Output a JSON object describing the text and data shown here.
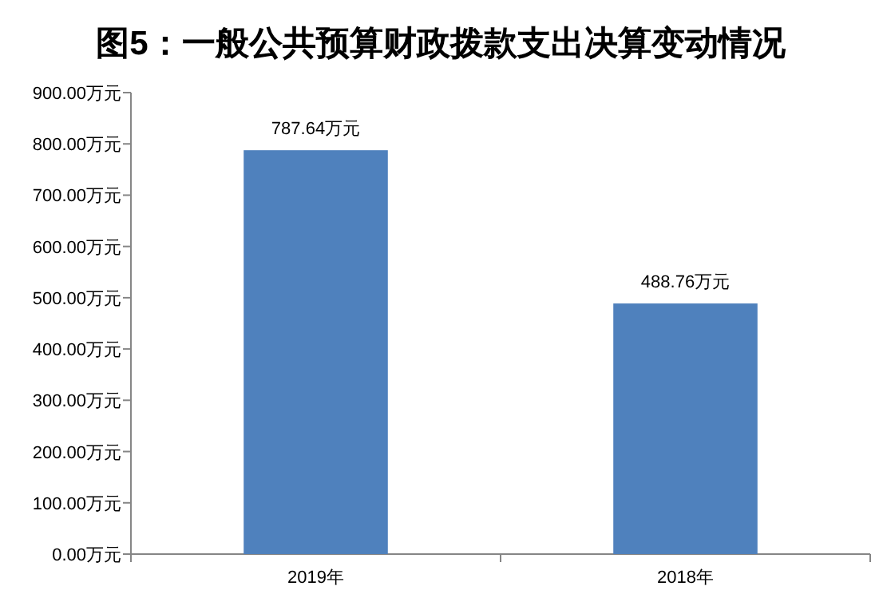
{
  "chart_data": {
    "type": "bar",
    "title": "图5：一般公共预算财政拨款支出决算变动情况",
    "categories": [
      "2019年",
      "2018年"
    ],
    "values": [
      787.64,
      488.76
    ],
    "value_labels": [
      "787.64万元",
      "488.76万元"
    ],
    "color": "#4f81bd",
    "ylim": [
      0,
      900
    ],
    "yticks": [
      {
        "value": 0,
        "label": "0.00万元"
      },
      {
        "value": 100,
        "label": "100.00万元"
      },
      {
        "value": 200,
        "label": "200.00万元"
      },
      {
        "value": 300,
        "label": "300.00万元"
      },
      {
        "value": 400,
        "label": "400.00万元"
      },
      {
        "value": 500,
        "label": "500.00万元"
      },
      {
        "value": 600,
        "label": "600.00万元"
      },
      {
        "value": 700,
        "label": "700.00万元"
      },
      {
        "value": 800,
        "label": "800.00万元"
      },
      {
        "value": 900,
        "label": "900.00万元"
      }
    ],
    "grid": false
  }
}
